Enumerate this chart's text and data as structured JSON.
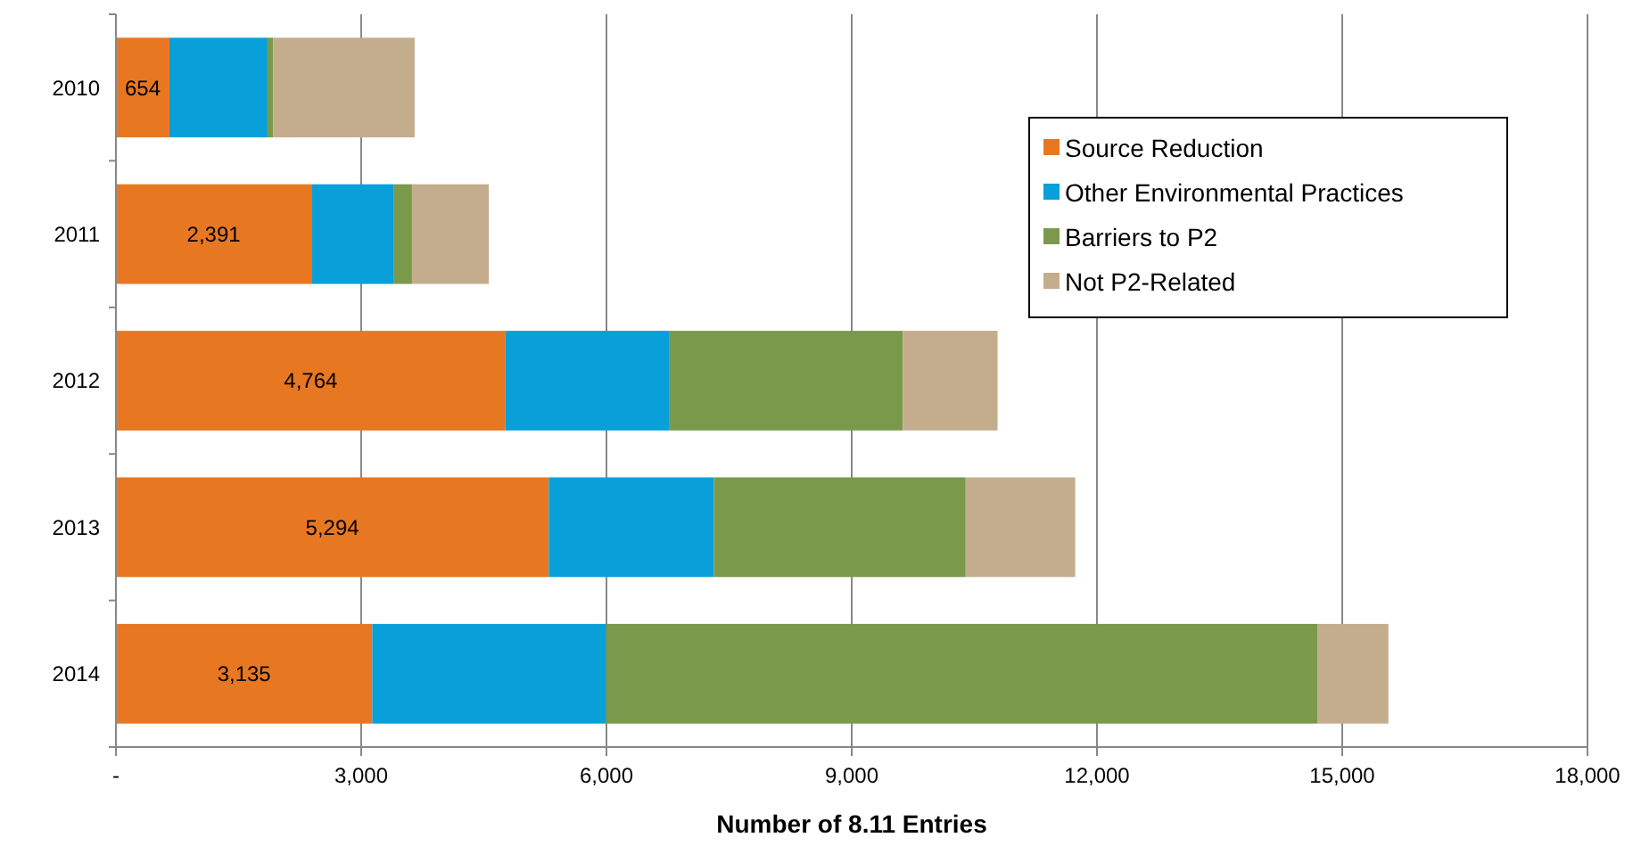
{
  "chart_data": {
    "type": "bar",
    "orientation": "horizontal",
    "stacked": true,
    "xlabel": "Number of 8.11 Entries",
    "categories": [
      "2010",
      "2011",
      "2012",
      "2013",
      "2014"
    ],
    "series": [
      {
        "name": "Source Reduction",
        "color": "#e87722",
        "values": [
          654,
          2391,
          4764,
          5294,
          3135
        ],
        "value_labels": [
          "654",
          "2,391",
          "4,764",
          "5,294",
          "3,135"
        ]
      },
      {
        "name": "Other Environmental Practices",
        "color": "#09a0d9",
        "values": [
          1200,
          1010,
          2000,
          2020,
          2860
        ]
      },
      {
        "name": "Barriers to P2",
        "color": "#7a994b",
        "values": [
          70,
          220,
          2860,
          3080,
          8700
        ]
      },
      {
        "name": "Not P2-Related",
        "color": "#c4ad8c",
        "values": [
          1730,
          940,
          1160,
          1340,
          870
        ]
      }
    ],
    "xlim": [
      0,
      18000
    ],
    "xticks": [
      {
        "value": 0,
        "label": "-"
      },
      {
        "value": 3000,
        "label": "3,000"
      },
      {
        "value": 6000,
        "label": "6,000"
      },
      {
        "value": 9000,
        "label": "9,000"
      },
      {
        "value": 12000,
        "label": "12,000"
      },
      {
        "value": 15000,
        "label": "15,000"
      },
      {
        "value": 18000,
        "label": "18,000"
      }
    ],
    "grid": "x",
    "legend": "top right"
  }
}
